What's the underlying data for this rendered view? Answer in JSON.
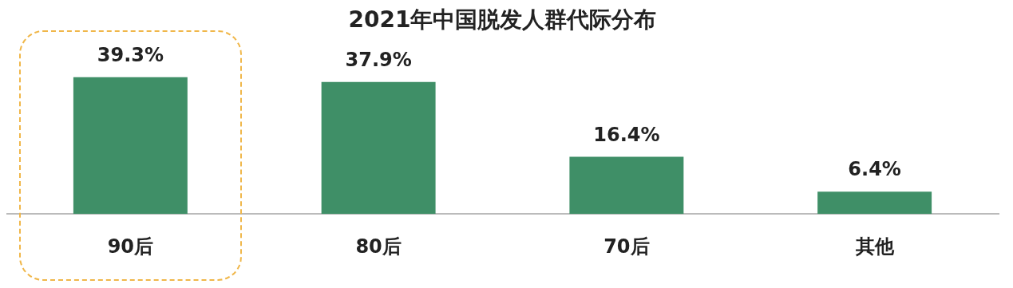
{
  "chart_data": {
    "type": "bar",
    "title": "2021年中国脱发人群代际分布",
    "categories": [
      "90后",
      "80后",
      "70后",
      "其他"
    ],
    "values": [
      39.3,
      37.9,
      16.4,
      6.4
    ],
    "value_labels": [
      "39.3%",
      "37.9%",
      "16.4%",
      "6.4%"
    ],
    "color": "#3f8f67",
    "grid": false,
    "legend": false
  }
}
